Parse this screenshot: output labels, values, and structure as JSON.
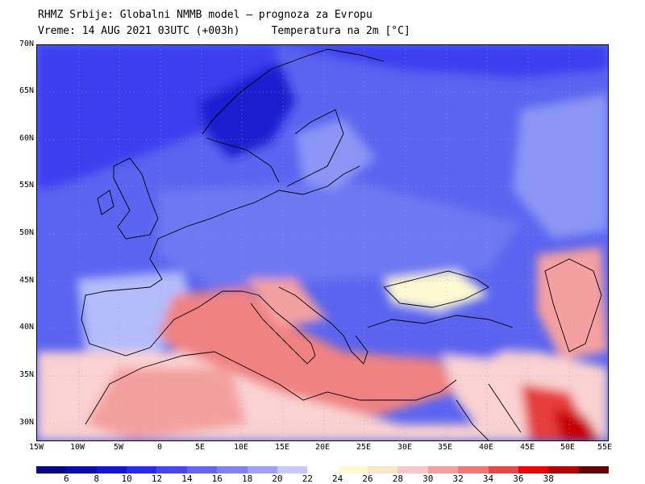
{
  "header": {
    "title": "RHMZ Srbije: Globalni NMMB model — prognoza za Evropu",
    "valid_time": "Vreme: 14 AUG 2021 03UTC (+003h)",
    "variable": "Temperatura na 2m [°C]"
  },
  "map": {
    "lat_labels": [
      "70N",
      "65N",
      "60N",
      "55N",
      "50N",
      "45N",
      "40N",
      "35N",
      "30N"
    ],
    "lon_labels": [
      "15W",
      "10W",
      "5W",
      "0",
      "5E",
      "10E",
      "15E",
      "20E",
      "25E",
      "30E",
      "35E",
      "40E",
      "45E",
      "50E",
      "55E"
    ],
    "colors": {
      "deep_blue": "#1a1ad0",
      "blue": "#3c3cf0",
      "mid_blue": "#5a64f0",
      "light_blue": "#8c96f5",
      "pale_blue": "#b4bcfa",
      "pale_yellow": "#fffad2",
      "light_pink": "#fad2d2",
      "pink": "#f5a0a0",
      "salmon": "#f08282",
      "red": "#e63c3c",
      "dark_red": "#c80000"
    }
  },
  "colorbar": {
    "labels": [
      "6",
      "8",
      "10",
      "12",
      "14",
      "16",
      "18",
      "20",
      "22",
      "24",
      "26",
      "28",
      "30",
      "32",
      "34",
      "36",
      "38"
    ],
    "colors": [
      "#05058c",
      "#0a0ab4",
      "#1414dc",
      "#2828f5",
      "#4646f5",
      "#6464f5",
      "#8282f5",
      "#a0a0fa",
      "#c8c8fa",
      "#ffffff",
      "#fffad2",
      "#fae6c8",
      "#fac8c8",
      "#f5a0a0",
      "#f07878",
      "#e64646",
      "#f00000",
      "#b40000",
      "#640000"
    ]
  }
}
